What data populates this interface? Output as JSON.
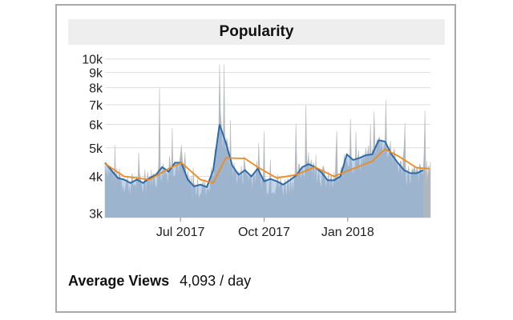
{
  "chart_data": {
    "type": "area",
    "title": "Popularity",
    "xlabel": "",
    "ylabel": "",
    "yscale": "log",
    "ylim": [
      2900,
      10300
    ],
    "x_range": [
      "2017-04-09",
      "2018-04-02"
    ],
    "grid": true,
    "colors": {
      "daily": "#a9b3bd",
      "daily_spike": "#bcbcbc",
      "smoothed_fill": "#8fb3d9",
      "smoothed_line": "#2f6aa8",
      "average": "#f08a1c",
      "grid": "#dddddd"
    },
    "y_ticks": [
      {
        "value": 3000,
        "label": "3k"
      },
      {
        "value": 4000,
        "label": "4k"
      },
      {
        "value": 5000,
        "label": "5k"
      },
      {
        "value": 6000,
        "label": "6k"
      },
      {
        "value": 7000,
        "label": "7k"
      },
      {
        "value": 8000,
        "label": "8k"
      },
      {
        "value": 9000,
        "label": "9k"
      },
      {
        "value": 10000,
        "label": "10k"
      }
    ],
    "x_ticks": [
      {
        "value": "2017-07-01",
        "label": "Jul 2017"
      },
      {
        "value": "2017-10-01",
        "label": "Oct 2017"
      },
      {
        "value": "2018-01-01",
        "label": "Jan 2018"
      }
    ],
    "series": [
      {
        "role": "smoothed",
        "points": [
          [
            "2017-04-09",
            4450
          ],
          [
            "2017-04-16",
            4200
          ],
          [
            "2017-04-23",
            3950
          ],
          [
            "2017-04-30",
            3900
          ],
          [
            "2017-05-07",
            3800
          ],
          [
            "2017-05-14",
            3900
          ],
          [
            "2017-05-21",
            3800
          ],
          [
            "2017-05-28",
            3950
          ],
          [
            "2017-06-04",
            4050
          ],
          [
            "2017-06-11",
            4300
          ],
          [
            "2017-06-18",
            4150
          ],
          [
            "2017-06-25",
            4450
          ],
          [
            "2017-07-02",
            4450
          ],
          [
            "2017-07-09",
            3900
          ],
          [
            "2017-07-16",
            3700
          ],
          [
            "2017-07-23",
            3750
          ],
          [
            "2017-07-30",
            3680
          ],
          [
            "2017-08-06",
            4200
          ],
          [
            "2017-08-13",
            6000
          ],
          [
            "2017-08-20",
            5200
          ],
          [
            "2017-08-27",
            4350
          ],
          [
            "2017-09-03",
            4050
          ],
          [
            "2017-09-10",
            4200
          ],
          [
            "2017-09-17",
            4000
          ],
          [
            "2017-09-24",
            4250
          ],
          [
            "2017-10-01",
            3850
          ],
          [
            "2017-10-08",
            3920
          ],
          [
            "2017-10-15",
            3850
          ],
          [
            "2017-10-22",
            3750
          ],
          [
            "2017-10-29",
            3880
          ],
          [
            "2017-11-05",
            4020
          ],
          [
            "2017-11-12",
            4300
          ],
          [
            "2017-11-19",
            4400
          ],
          [
            "2017-11-26",
            4300
          ],
          [
            "2017-12-03",
            4130
          ],
          [
            "2017-12-10",
            3880
          ],
          [
            "2017-12-17",
            3880
          ],
          [
            "2017-12-24",
            4000
          ],
          [
            "2017-12-31",
            4750
          ],
          [
            "2018-01-07",
            4550
          ],
          [
            "2018-01-14",
            4620
          ],
          [
            "2018-01-21",
            4720
          ],
          [
            "2018-01-28",
            4750
          ],
          [
            "2018-02-04",
            5300
          ],
          [
            "2018-02-11",
            5250
          ],
          [
            "2018-02-18",
            4760
          ],
          [
            "2018-02-25",
            4450
          ],
          [
            "2018-03-04",
            4200
          ],
          [
            "2018-03-11",
            4100
          ],
          [
            "2018-03-18",
            4100
          ],
          [
            "2018-03-25",
            4200
          ]
        ]
      },
      {
        "role": "average",
        "points": [
          [
            "2017-04-09",
            4420
          ],
          [
            "2017-04-30",
            4000
          ],
          [
            "2017-05-28",
            3900
          ],
          [
            "2017-06-18",
            4250
          ],
          [
            "2017-07-02",
            4450
          ],
          [
            "2017-07-23",
            3900
          ],
          [
            "2017-08-06",
            3800
          ],
          [
            "2017-08-20",
            4620
          ],
          [
            "2017-09-10",
            4600
          ],
          [
            "2017-09-24",
            4300
          ],
          [
            "2017-10-15",
            3950
          ],
          [
            "2017-11-05",
            4050
          ],
          [
            "2017-11-26",
            4300
          ],
          [
            "2017-12-17",
            4000
          ],
          [
            "2018-01-07",
            4250
          ],
          [
            "2018-01-28",
            4500
          ],
          [
            "2018-02-11",
            4950
          ],
          [
            "2018-02-25",
            4700
          ],
          [
            "2018-03-18",
            4280
          ],
          [
            "2018-04-01",
            4250
          ]
        ]
      }
    ]
  },
  "footer": {
    "label": "Average Views",
    "value": "4,093 / day"
  }
}
